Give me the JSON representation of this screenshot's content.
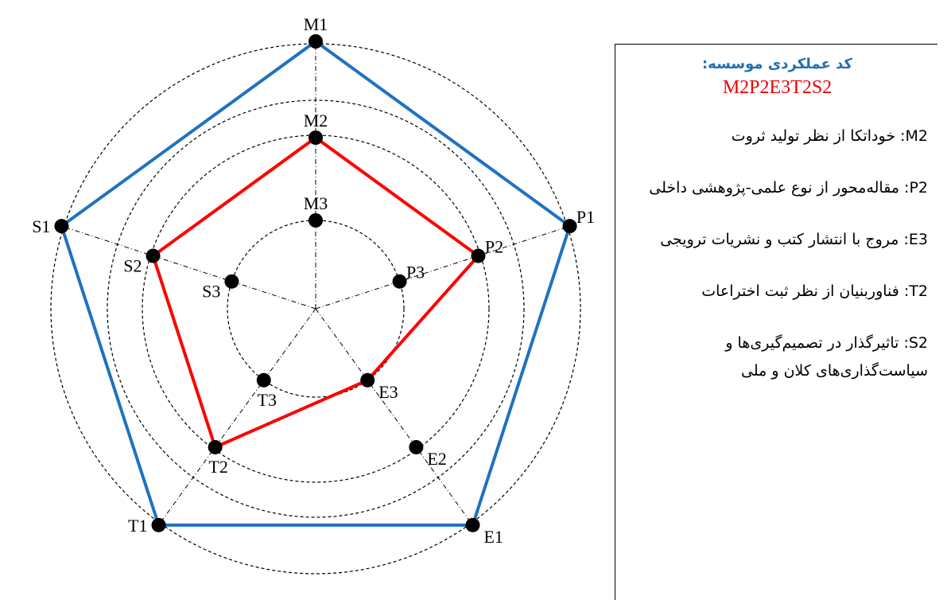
{
  "axes": [
    {
      "levels": [
        "M1",
        "M2",
        "M3"
      ]
    },
    {
      "levels": [
        "P1",
        "P2",
        "P3"
      ]
    },
    {
      "levels": [
        "E1",
        "E2",
        "E3"
      ]
    },
    {
      "levels": [
        "T1",
        "T2",
        "T3"
      ]
    },
    {
      "levels": [
        "S1",
        "S2",
        "S3"
      ]
    }
  ],
  "box": {
    "title": "کد عملکردی موسسه:",
    "code": "M2P2E3T2S2",
    "items": [
      "M2: خوداتکا از نظر تولید ثروت",
      "P2: مقاله‌محور از نوع علمی-پژوهشی داخلی",
      "E3: مروج با انتشار کتب و نشریات ترویجی",
      "T2: فناوربنیان از نظر ثبت اختراعات",
      "S2: تاثیرگذار در تصمیم‌گیری‌ها و سیاست‌گذاری‌های کلان و ملی"
    ]
  }
}
